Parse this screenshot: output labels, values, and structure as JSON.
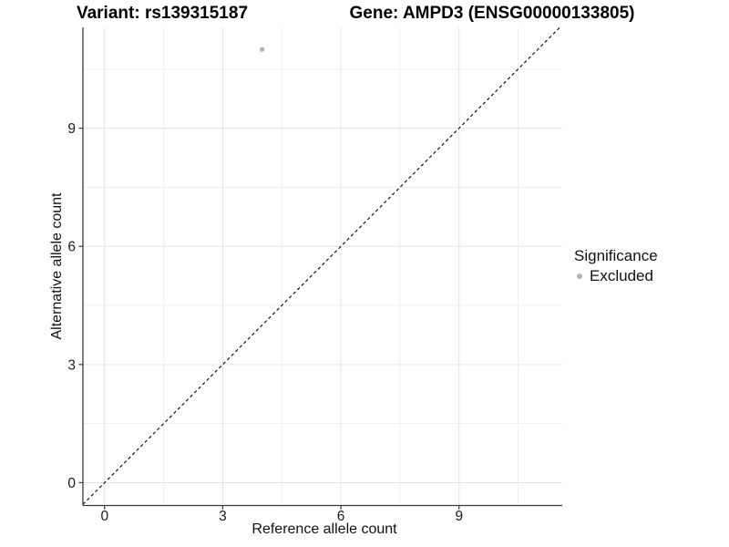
{
  "chart_data": {
    "type": "scatter",
    "titles": {
      "left": "Variant: rs139315187",
      "right": "Gene: AMPD3 (ENSG00000133805)"
    },
    "xlabel": "Reference allele count",
    "ylabel": "Alternative allele count",
    "xlim": [
      -0.55,
      11.62
    ],
    "ylim": [
      -0.58,
      11.56
    ],
    "x_ticks": [
      0,
      3,
      6,
      9
    ],
    "y_ticks": [
      0,
      3,
      6,
      9
    ],
    "x_minor_ticks": [
      1.5,
      4.5,
      7.5,
      10.5
    ],
    "y_minor_ticks": [
      1.5,
      4.5,
      7.5,
      10.5
    ],
    "grid": true,
    "series": [
      {
        "name": "Excluded",
        "color": "#b4b4b4",
        "points": [
          {
            "x": 4,
            "y": 11
          }
        ]
      }
    ],
    "reference_line": {
      "slope": 1,
      "intercept": 0,
      "style": "dashed",
      "color": "#000000"
    },
    "legend": {
      "title": "Significance",
      "position": "right",
      "items": [
        {
          "label": "Excluded",
          "color": "#b4b4b4",
          "marker": "circle"
        }
      ]
    }
  },
  "style": {
    "background": "#ffffff",
    "grid_major_color": "#e3e3e3",
    "grid_minor_color": "#ededed",
    "axis_line_color": "#3a3a3a",
    "tick_label_color": "#1a1a1a",
    "point_color": "#b4b4b4"
  }
}
